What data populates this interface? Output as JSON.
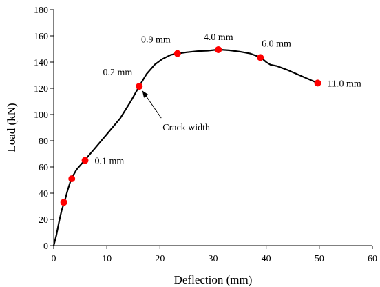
{
  "chart_data": {
    "type": "line",
    "xlabel": "Deflection (mm)",
    "ylabel": "Load (kN)",
    "xlim": [
      0,
      60
    ],
    "ylim": [
      0,
      180
    ],
    "xticks": [
      0,
      10,
      20,
      30,
      40,
      50,
      60
    ],
    "yticks": [
      0,
      20,
      40,
      60,
      80,
      100,
      120,
      140,
      160,
      180
    ],
    "grid": false,
    "legend": "none",
    "line_color": "#000000",
    "marker_color": "#ff0000",
    "series": [
      {
        "curve": [
          [
            0,
            0
          ],
          [
            0.5,
            8
          ],
          [
            1.0,
            18
          ],
          [
            1.5,
            27
          ],
          [
            2.0,
            33
          ],
          [
            2.6,
            42
          ],
          [
            3.3,
            51
          ],
          [
            4.3,
            58
          ],
          [
            5.8,
            65
          ],
          [
            7.5,
            73
          ],
          [
            10,
            85
          ],
          [
            12.5,
            97
          ],
          [
            14.5,
            110
          ],
          [
            16.1,
            121.5
          ],
          [
            17.5,
            131
          ],
          [
            19,
            138
          ],
          [
            20.5,
            142.5
          ],
          [
            22,
            145.5
          ],
          [
            23.3,
            146.5
          ],
          [
            25,
            147.5
          ],
          [
            27,
            148.3
          ],
          [
            29,
            148.7
          ],
          [
            31,
            149.5
          ],
          [
            33,
            149
          ],
          [
            35,
            148
          ],
          [
            37,
            146.5
          ],
          [
            39,
            143.5
          ],
          [
            40,
            140
          ],
          [
            40.8,
            138
          ],
          [
            42,
            137
          ],
          [
            44,
            134
          ],
          [
            46,
            130.5
          ],
          [
            48,
            127
          ],
          [
            49.7,
            124
          ]
        ],
        "markers": [
          [
            1.9,
            33
          ],
          [
            3.4,
            51
          ],
          [
            5.9,
            65
          ],
          [
            16.1,
            121.5
          ],
          [
            23.3,
            146.5
          ],
          [
            31.0,
            149.5
          ],
          [
            38.9,
            143.5
          ],
          [
            49.7,
            124
          ]
        ]
      }
    ],
    "annotations": [
      {
        "text": "0.1 mm",
        "x": 5.9,
        "y": 65,
        "anchor": "right"
      },
      {
        "text": "0.2 mm",
        "x": 16.1,
        "y": 121.5,
        "anchor": "above-left"
      },
      {
        "text": "0.9 mm",
        "x": 23.3,
        "y": 146.5,
        "anchor": "above-left"
      },
      {
        "text": "4.0 mm",
        "x": 31.0,
        "y": 149.5,
        "anchor": "above"
      },
      {
        "text": "6.0 mm",
        "x": 38.9,
        "y": 143.5,
        "anchor": "above-right"
      },
      {
        "text": "11.0 mm",
        "x": 49.7,
        "y": 124,
        "anchor": "right"
      }
    ],
    "callout": {
      "text": "Crack width",
      "x": 16.1,
      "y": 121.5
    }
  }
}
